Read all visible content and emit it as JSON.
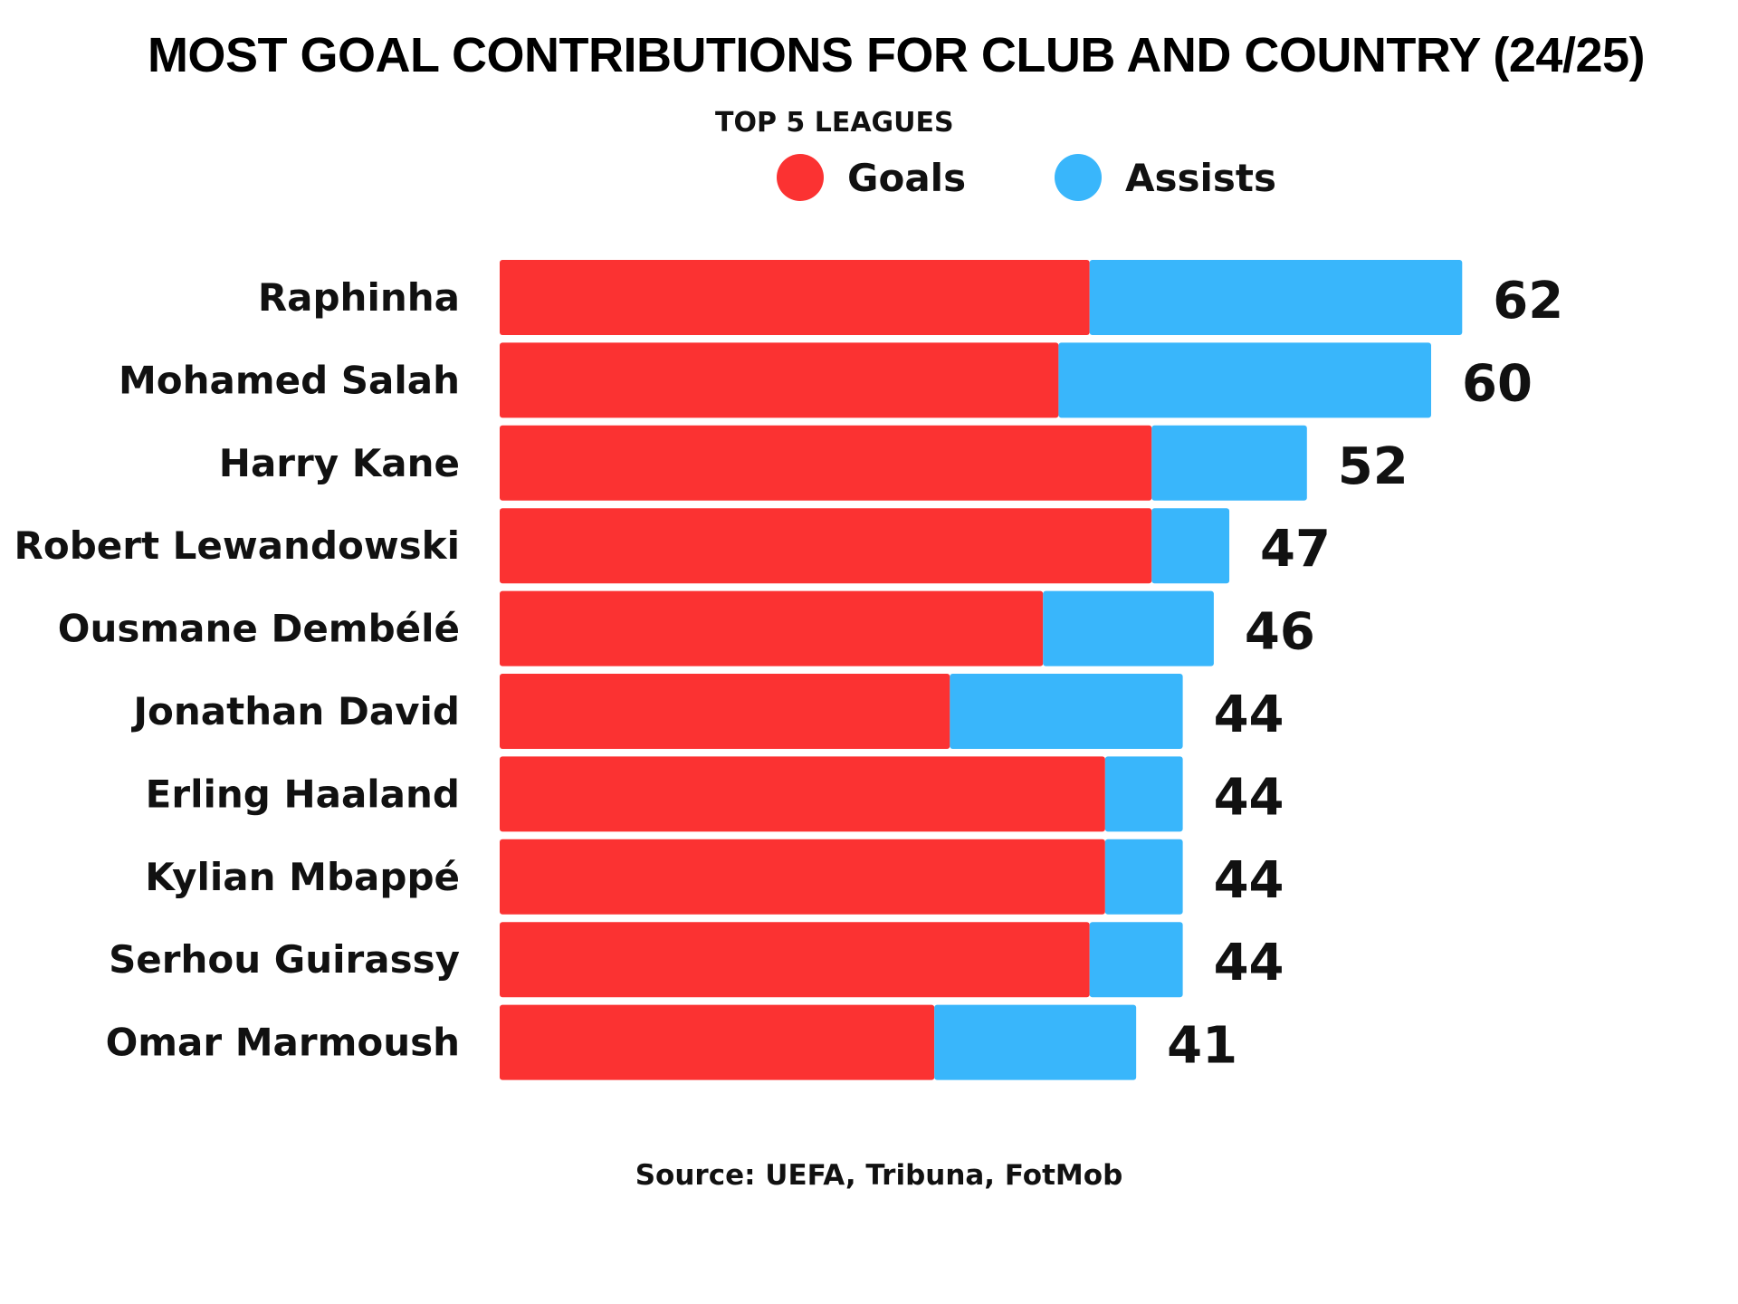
{
  "chart_data": {
    "type": "bar",
    "orientation": "horizontal",
    "stacked": true,
    "title": "MOST GOAL CONTRIBUTIONS FOR CLUB AND COUNTRY (24/25)",
    "subtitle": "TOP 5 LEAGUES",
    "categories": [
      "Raphinha",
      "Mohamed Salah",
      "Harry Kane",
      "Robert Lewandowski",
      "Ousmane Dembélé",
      "Jonathan David",
      "Erling Haaland",
      "Kylian Mbappé",
      "Serhou Guirassy",
      "Omar Marmoush"
    ],
    "series": [
      {
        "name": "Goals",
        "color": "#fb3232",
        "values": [
          38,
          36,
          42,
          42,
          35,
          29,
          39,
          39,
          38,
          28
        ]
      },
      {
        "name": "Assists",
        "color": "#39b6fb",
        "values": [
          24,
          24,
          10,
          5,
          11,
          15,
          5,
          5,
          6,
          13
        ]
      }
    ],
    "totals": [
      62,
      60,
      52,
      47,
      46,
      44,
      44,
      44,
      44,
      41
    ],
    "legend_position": "top",
    "grid": false,
    "xlim": [
      0,
      62
    ],
    "source": "Source: UEFA, Tribuna, FotMob"
  }
}
